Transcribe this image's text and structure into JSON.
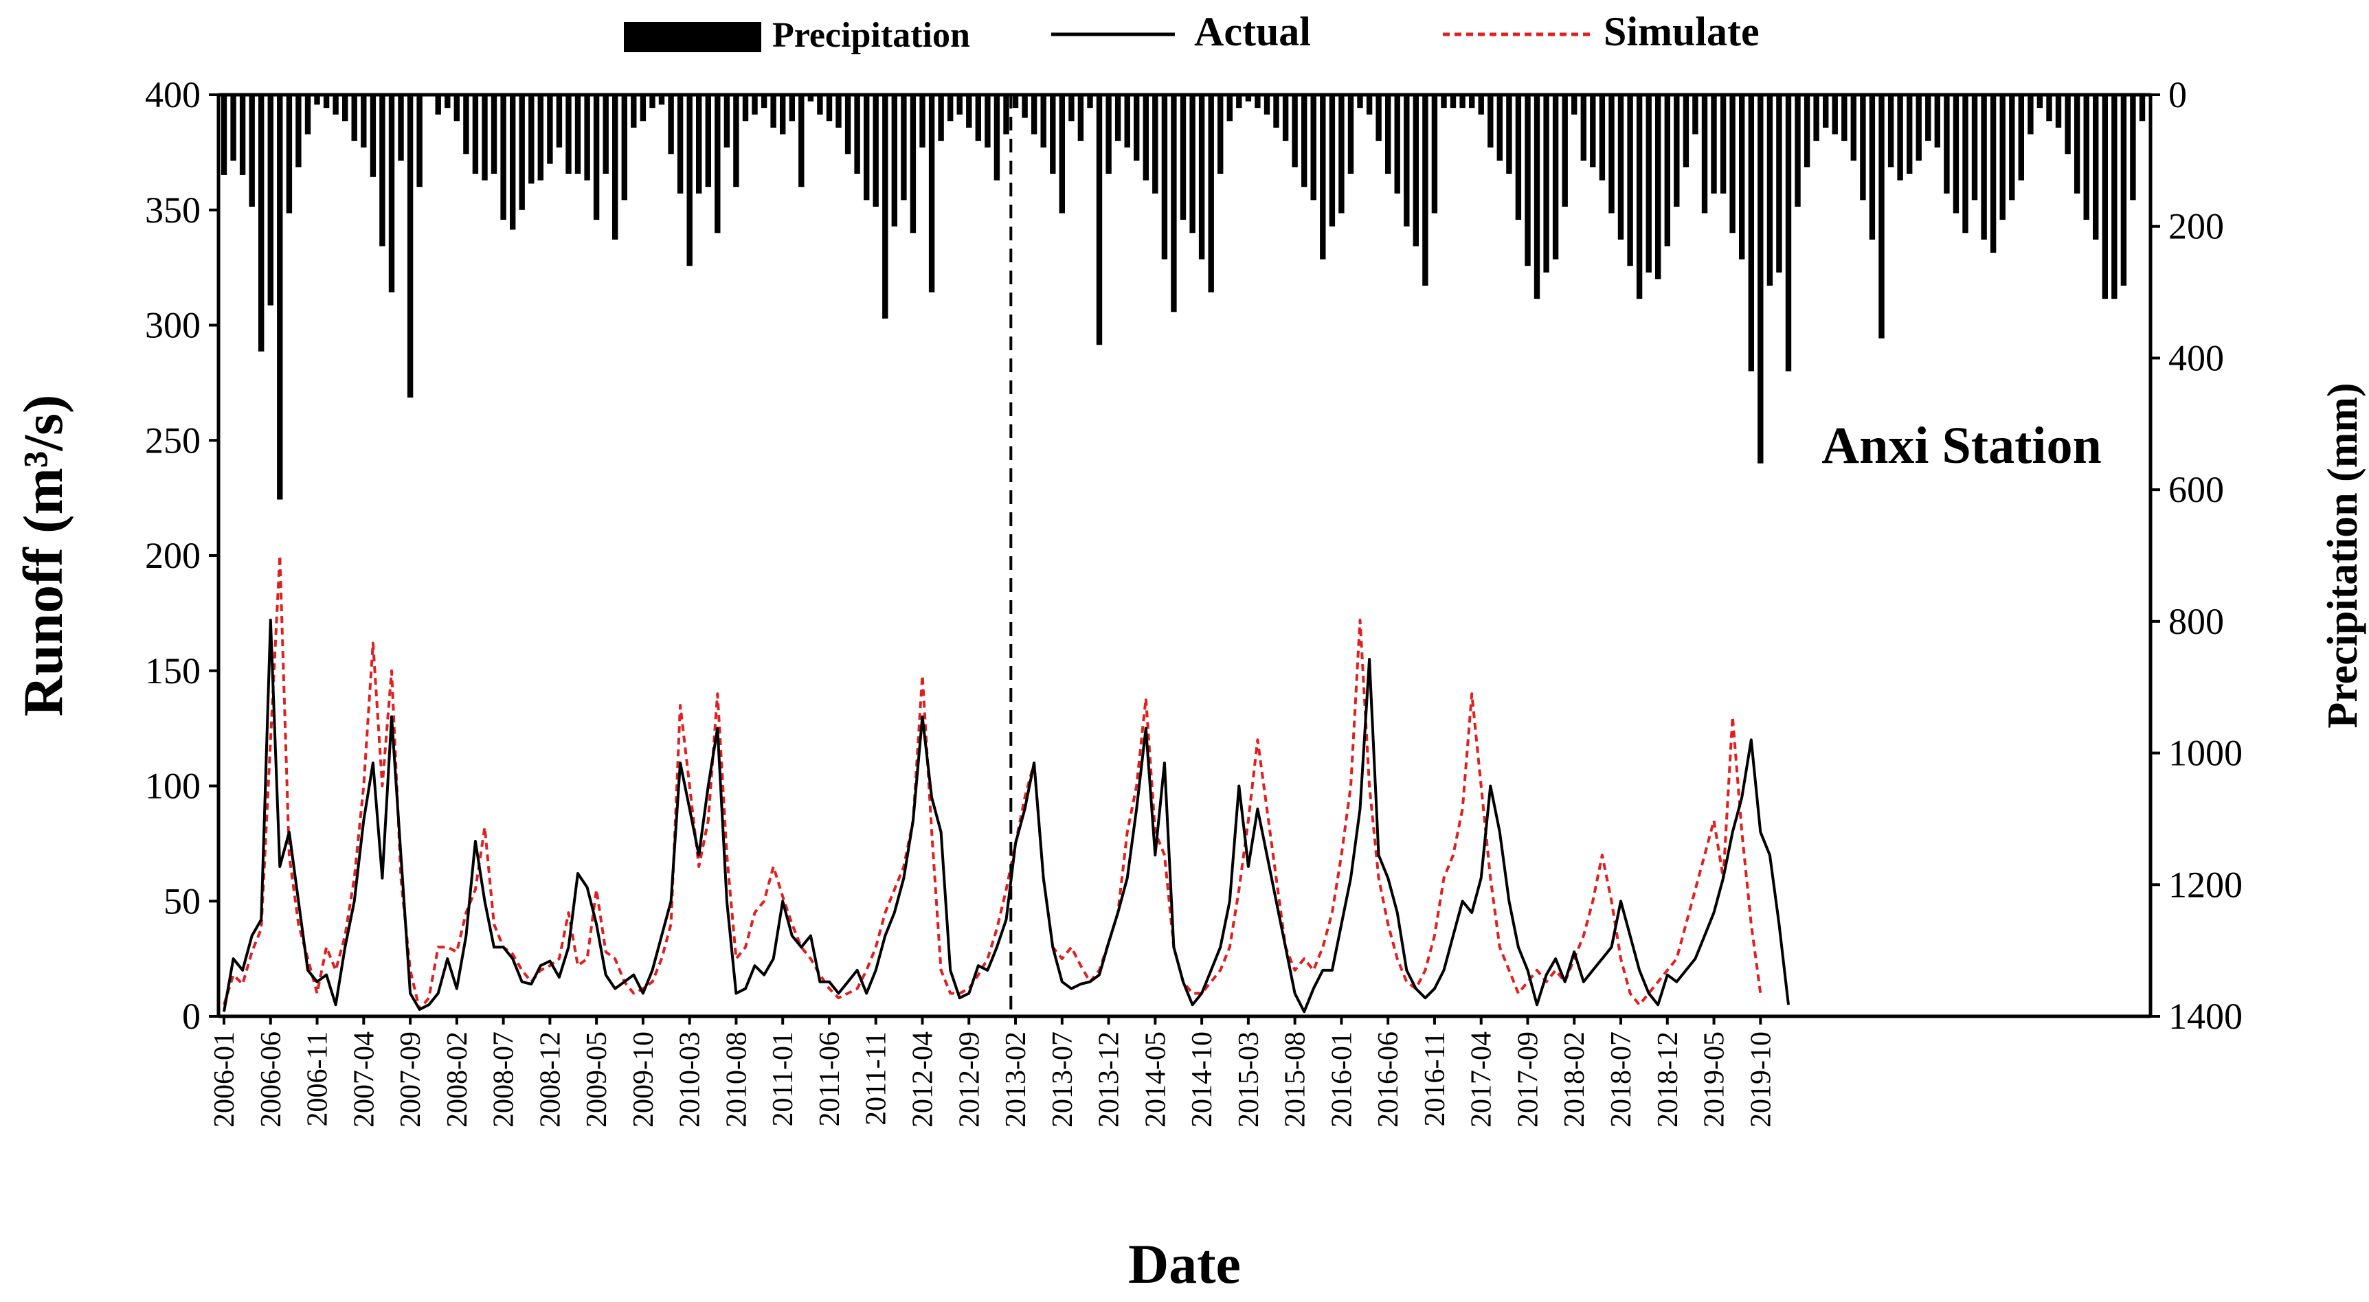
{
  "chart_data": {
    "type": "line",
    "station_label": "Anxi Station",
    "xlabel": "Date",
    "ylabel_left": "Runoff (m³/s)",
    "ylabel_right": "Precipitation (mm)",
    "ylim_left": [
      0,
      400
    ],
    "yticks_left": [
      "0",
      "50",
      "100",
      "150",
      "200",
      "250",
      "300",
      "350",
      "400"
    ],
    "ylim_right": [
      0,
      1400
    ],
    "yticks_right": [
      "0",
      "200",
      "400",
      "600",
      "800",
      "1000",
      "1200",
      "1400"
    ],
    "right_axis_inverted": true,
    "grid": false,
    "legend": {
      "position": "top-center",
      "items": [
        {
          "name": "Precipitation",
          "style": "bar",
          "color": "#000000"
        },
        {
          "name": "Actual",
          "style": "solid",
          "color": "#000000"
        },
        {
          "name": "Simulate",
          "style": "dashed",
          "color": "#e02020"
        }
      ]
    },
    "divider_month": "2013-01",
    "start_month": "2006-01",
    "x_tick_labels": [
      "2006-01",
      "2006-06",
      "2006-11",
      "2007-04",
      "2007-09",
      "2008-02",
      "2008-07",
      "2008-12",
      "2009-05",
      "2009-10",
      "2010-03",
      "2010-08",
      "2011-01",
      "2011-06",
      "2011-11",
      "2012-04",
      "2012-09",
      "2013-02",
      "2013-07",
      "2013-12",
      "2014-05",
      "2014-10",
      "2015-03",
      "2015-08",
      "2016-01",
      "2016-06",
      "2016-11",
      "2017-04",
      "2017-09",
      "2018-02",
      "2018-07",
      "2018-12",
      "2019-05",
      "2019-10"
    ],
    "series": [
      {
        "name": "Precipitation",
        "axis": "right",
        "values": [
          122,
          100,
          122,
          170,
          390,
          320,
          615,
          180,
          110,
          60,
          15,
          20,
          30,
          40,
          70,
          80,
          125,
          230,
          300,
          100,
          460,
          140,
          0,
          30,
          20,
          40,
          90,
          120,
          130,
          120,
          190,
          205,
          175,
          135,
          130,
          105,
          80,
          120,
          120,
          130,
          190,
          120,
          220,
          160,
          50,
          40,
          20,
          15,
          90,
          150,
          260,
          150,
          140,
          210,
          80,
          140,
          40,
          30,
          20,
          50,
          60,
          40,
          140,
          10,
          30,
          40,
          50,
          90,
          120,
          160,
          170,
          340,
          200,
          160,
          210,
          80,
          300,
          70,
          40,
          30,
          50,
          70,
          80,
          130,
          60,
          20,
          35,
          60,
          80,
          120,
          180,
          40,
          70,
          20,
          380,
          120,
          70,
          80,
          100,
          130,
          150,
          250,
          330,
          190,
          210,
          250,
          300,
          120,
          40,
          20,
          10,
          20,
          30,
          50,
          70,
          110,
          140,
          160,
          250,
          200,
          180,
          120,
          20,
          30,
          70,
          120,
          150,
          200,
          230,
          290,
          180,
          20,
          20,
          20,
          20,
          30,
          80,
          100,
          120,
          190,
          260,
          310,
          270,
          250,
          170,
          30,
          100,
          110,
          130,
          180,
          220,
          260,
          310,
          270,
          280,
          230,
          170,
          110,
          60,
          180,
          150,
          150,
          210,
          250,
          420,
          560,
          290,
          270,
          420,
          170,
          110,
          70,
          50,
          60,
          70,
          100,
          160,
          220,
          370,
          110,
          130,
          120,
          100,
          70,
          80,
          150,
          180,
          210,
          160,
          220,
          240,
          190,
          160,
          130,
          60,
          20,
          40,
          50,
          90,
          150,
          190,
          220,
          310,
          310,
          290,
          160,
          40
        ]
      },
      {
        "name": "Actual",
        "values": [
          2,
          25,
          20,
          35,
          42,
          172,
          65,
          80,
          50,
          20,
          15,
          18,
          5,
          30,
          50,
          85,
          110,
          60,
          130,
          70,
          10,
          3,
          5,
          10,
          25,
          12,
          35,
          76,
          50,
          30,
          30,
          25,
          15,
          14,
          22,
          24,
          17,
          30,
          62,
          56,
          40,
          18,
          12,
          15,
          18,
          10,
          20,
          35,
          50,
          110,
          90,
          70,
          100,
          125,
          50,
          10,
          12,
          22,
          18,
          25,
          50,
          35,
          30,
          35,
          15,
          15,
          10,
          15,
          20,
          10,
          20,
          35,
          45,
          60,
          85,
          130,
          95,
          80,
          20,
          8,
          10,
          22,
          20,
          30,
          42,
          75,
          90,
          110,
          60,
          30,
          15,
          12,
          14,
          15,
          18,
          32,
          45,
          60,
          90,
          125,
          70,
          110,
          30,
          15,
          5,
          10,
          20,
          30,
          50,
          100,
          65,
          90,
          70,
          50,
          30,
          10,
          2,
          12,
          20,
          20,
          40,
          60,
          90,
          155,
          70,
          60,
          45,
          20,
          12,
          8,
          12,
          20,
          35,
          50,
          45,
          60,
          100,
          80,
          50,
          30,
          20,
          5,
          18,
          25,
          15,
          28,
          15,
          20,
          25,
          30,
          50,
          35,
          20,
          10,
          5,
          18,
          15,
          20,
          25,
          35,
          45,
          60,
          80,
          95,
          120,
          80,
          70,
          40,
          5
        ]
      },
      {
        "name": "Simulate",
        "values": [
          5,
          18,
          14,
          28,
          38,
          120,
          200,
          70,
          40,
          25,
          10,
          30,
          20,
          35,
          60,
          100,
          162,
          100,
          150,
          60,
          20,
          3,
          8,
          30,
          30,
          28,
          45,
          55,
          82,
          40,
          30,
          27,
          20,
          15,
          20,
          22,
          25,
          45,
          22,
          25,
          55,
          28,
          25,
          15,
          10,
          12,
          15,
          25,
          40,
          135,
          100,
          65,
          85,
          140,
          70,
          25,
          30,
          45,
          50,
          65,
          52,
          40,
          30,
          25,
          18,
          12,
          8,
          10,
          12,
          20,
          30,
          45,
          55,
          65,
          85,
          148,
          80,
          20,
          10,
          10,
          12,
          18,
          25,
          38,
          55,
          75,
          95,
          110,
          60,
          30,
          25,
          30,
          22,
          15,
          20,
          32,
          45,
          80,
          100,
          138,
          80,
          70,
          30,
          15,
          10,
          10,
          15,
          20,
          30,
          55,
          85,
          120,
          90,
          60,
          30,
          20,
          25,
          20,
          30,
          45,
          70,
          100,
          172,
          100,
          60,
          40,
          25,
          15,
          12,
          20,
          35,
          60,
          70,
          90,
          140,
          100,
          60,
          30,
          20,
          10,
          15,
          20,
          15,
          20,
          15,
          25,
          35,
          50,
          70,
          50,
          25,
          10,
          5,
          10,
          15,
          20,
          25,
          40,
          55,
          70,
          85,
          60,
          130,
          80,
          40,
          10
        ]
      }
    ]
  }
}
